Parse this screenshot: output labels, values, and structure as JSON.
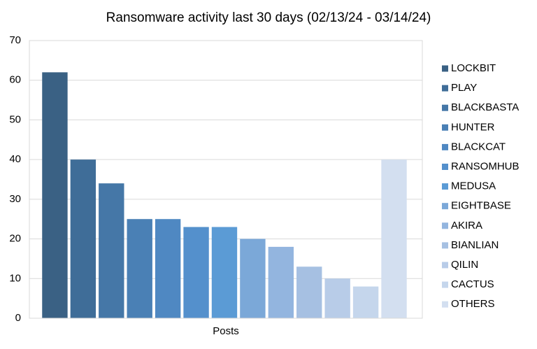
{
  "chart_data": {
    "type": "bar",
    "title": "Ransomware activity last 30 days (02/13/24 - 03/14/24)",
    "categories": [
      "Posts"
    ],
    "series": [
      {
        "name": "LOCKBIT",
        "color": "#3a6184",
        "values": [
          62
        ]
      },
      {
        "name": "PLAY",
        "color": "#3f6d98",
        "values": [
          40
        ]
      },
      {
        "name": "BLACKBASTA",
        "color": "#4577a7",
        "values": [
          34
        ]
      },
      {
        "name": "HUNTER",
        "color": "#4a80b5",
        "values": [
          25
        ]
      },
      {
        "name": "BLACKCAT",
        "color": "#4f88c2",
        "values": [
          25
        ]
      },
      {
        "name": "RANSOMHUB",
        "color": "#5490cc",
        "values": [
          23
        ]
      },
      {
        "name": "MEDUSA",
        "color": "#5b9bd5",
        "values": [
          23
        ]
      },
      {
        "name": "EIGHTBASE",
        "color": "#7ba8d8",
        "values": [
          20
        ]
      },
      {
        "name": "AKIRA",
        "color": "#93b5df",
        "values": [
          18
        ]
      },
      {
        "name": "BIANLIAN",
        "color": "#a6c0e2",
        "values": [
          13
        ]
      },
      {
        "name": "QILIN",
        "color": "#b8cce8",
        "values": [
          10
        ]
      },
      {
        "name": "CACTUS",
        "color": "#c5d6ec",
        "values": [
          8
        ]
      },
      {
        "name": "OTHERS",
        "color": "#d3dff0",
        "values": [
          40
        ]
      }
    ],
    "ylim": [
      0,
      70
    ],
    "yticks": [
      0,
      10,
      20,
      30,
      40,
      50,
      60,
      70
    ],
    "grid": true,
    "legend": "right"
  }
}
